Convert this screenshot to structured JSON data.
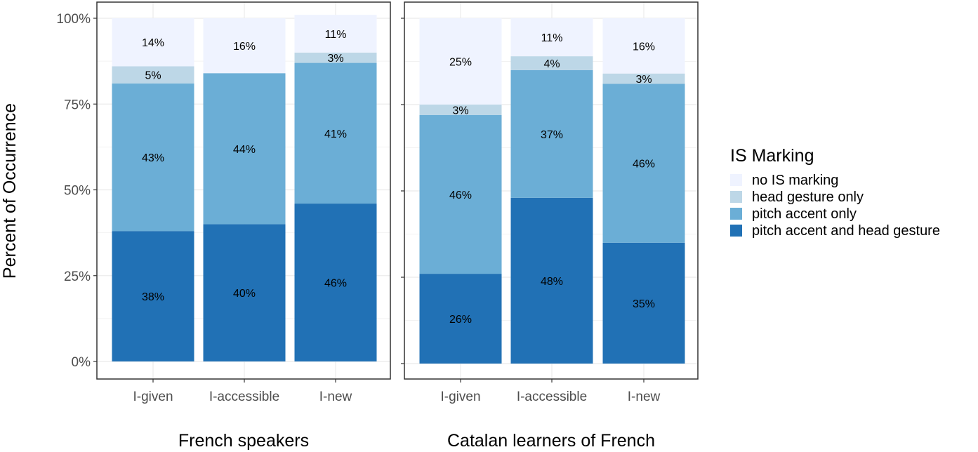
{
  "chart_data": {
    "type": "bar",
    "stacked": true,
    "ylabel": "Percent of Occurrence",
    "ylim": [
      0,
      1
    ],
    "y_ticks": [
      "0%",
      "25%",
      "50%",
      "75%",
      "100%"
    ],
    "y_tick_values": [
      0,
      0.25,
      0.5,
      0.75,
      1.0
    ],
    "grid": true,
    "legend": {
      "title": "IS Marking",
      "position": "right",
      "entries": [
        {
          "name": "no IS marking",
          "color": "#eff3ff"
        },
        {
          "name": "head gesture only",
          "color": "#bdd7e7"
        },
        {
          "name": "pitch accent only",
          "color": "#6baed6"
        },
        {
          "name": "pitch accent and head gesture",
          "color": "#2171b5"
        }
      ]
    },
    "panels": [
      {
        "title": "French speakers",
        "categories": [
          "I-given",
          "I-accessible",
          "I-new"
        ],
        "series": [
          {
            "name": "pitch accent and head gesture",
            "values": [
              0.38,
              0.4,
              0.46
            ],
            "labels": [
              "38%",
              "40%",
              "46%"
            ]
          },
          {
            "name": "pitch accent only",
            "values": [
              0.43,
              0.44,
              0.41
            ],
            "labels": [
              "43%",
              "44%",
              "41%"
            ]
          },
          {
            "name": "head gesture only",
            "values": [
              0.05,
              0.0,
              0.03
            ],
            "labels": [
              "5%",
              "",
              "3%"
            ]
          },
          {
            "name": "no IS marking",
            "values": [
              0.14,
              0.16,
              0.11
            ],
            "labels": [
              "14%",
              "16%",
              "11%"
            ]
          }
        ]
      },
      {
        "title": "Catalan learners of French",
        "categories": [
          "I-given",
          "I-accessible",
          "I-new"
        ],
        "series": [
          {
            "name": "pitch accent and head gesture",
            "values": [
              0.26,
              0.48,
              0.35
            ],
            "labels": [
              "26%",
              "48%",
              "35%"
            ]
          },
          {
            "name": "pitch accent only",
            "values": [
              0.46,
              0.37,
              0.46
            ],
            "labels": [
              "46%",
              "37%",
              "46%"
            ]
          },
          {
            "name": "head gesture only",
            "values": [
              0.03,
              0.04,
              0.03
            ],
            "labels": [
              "3%",
              "4%",
              "3%"
            ]
          },
          {
            "name": "no IS marking",
            "values": [
              0.25,
              0.11,
              0.16
            ],
            "labels": [
              "25%",
              "11%",
              "16%"
            ]
          }
        ]
      }
    ]
  }
}
